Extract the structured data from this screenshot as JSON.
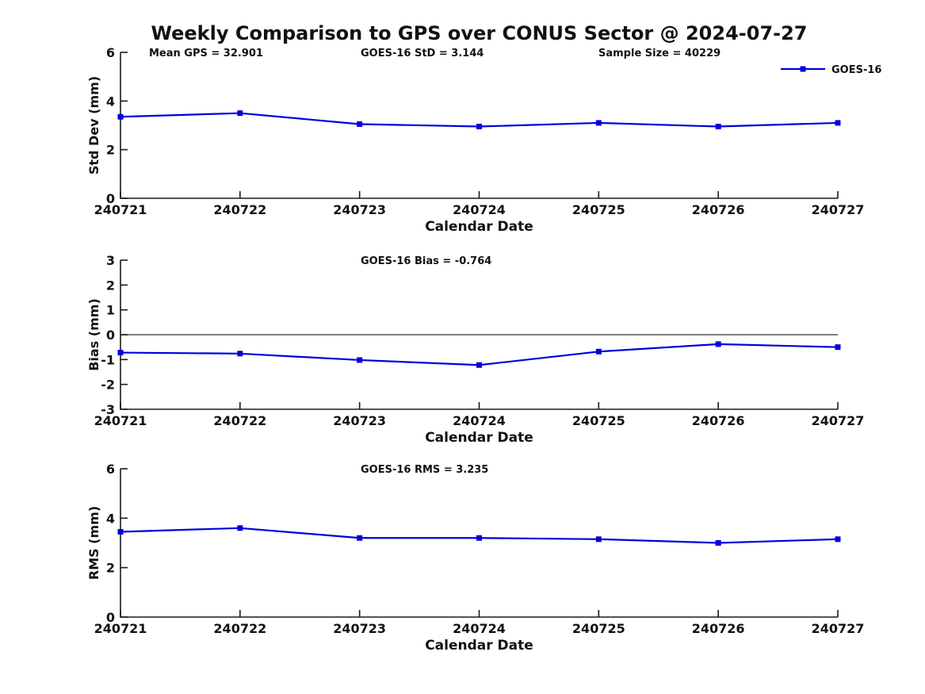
{
  "page": {
    "title": "Weekly Comparison to GPS over CONUS Sector @ 2024-07-27"
  },
  "colors": {
    "series": "#0000dd",
    "axis": "#1a1a1a",
    "text": "#111111",
    "zero_line": "#555555",
    "background": "#ffffff"
  },
  "legend": {
    "label": "GOES-16",
    "position": "top-right"
  },
  "chart_data": [
    {
      "type": "line",
      "name": "std-dev",
      "title": "",
      "xlabel": "Calendar Date",
      "ylabel": "Std Dev (mm)",
      "categories": [
        "240721",
        "240722",
        "240723",
        "240724",
        "240725",
        "240726",
        "240727"
      ],
      "series": [
        {
          "name": "GOES-16",
          "values": [
            3.35,
            3.5,
            3.05,
            2.95,
            3.1,
            2.95,
            3.1
          ]
        }
      ],
      "ylim": [
        0,
        6
      ],
      "yticks": [
        0,
        2,
        4,
        6
      ],
      "grid": false,
      "marker": "square",
      "annotations": [
        "Mean GPS = 32.901",
        "GOES-16 StD = 3.144",
        "Sample Size = 40229"
      ],
      "legend_entries": [
        "GOES-16"
      ],
      "legend_position": "top-right"
    },
    {
      "type": "line",
      "name": "bias",
      "title": "",
      "xlabel": "Calendar Date",
      "ylabel": "Bias (mm)",
      "categories": [
        "240721",
        "240722",
        "240723",
        "240724",
        "240725",
        "240726",
        "240727"
      ],
      "series": [
        {
          "name": "GOES-16",
          "values": [
            -0.72,
            -0.76,
            -1.02,
            -1.22,
            -0.68,
            -0.38,
            -0.5
          ]
        }
      ],
      "ylim": [
        -3,
        3
      ],
      "yticks": [
        -3,
        -2,
        -1,
        0,
        1,
        2,
        3
      ],
      "grid": false,
      "zero_line": true,
      "marker": "square",
      "annotations": [
        "GOES-16 Bias  = -0.764"
      ],
      "legend_entries": []
    },
    {
      "type": "line",
      "name": "rms",
      "title": "",
      "xlabel": "Calendar Date",
      "ylabel": "RMS (mm)",
      "categories": [
        "240721",
        "240722",
        "240723",
        "240724",
        "240725",
        "240726",
        "240727"
      ],
      "series": [
        {
          "name": "GOES-16",
          "values": [
            3.45,
            3.6,
            3.2,
            3.2,
            3.15,
            3.0,
            3.15
          ]
        }
      ],
      "ylim": [
        0,
        6
      ],
      "yticks": [
        0,
        2,
        4,
        6
      ],
      "grid": false,
      "marker": "square",
      "annotations": [
        "GOES-16 RMS = 3.235"
      ],
      "legend_entries": []
    }
  ]
}
